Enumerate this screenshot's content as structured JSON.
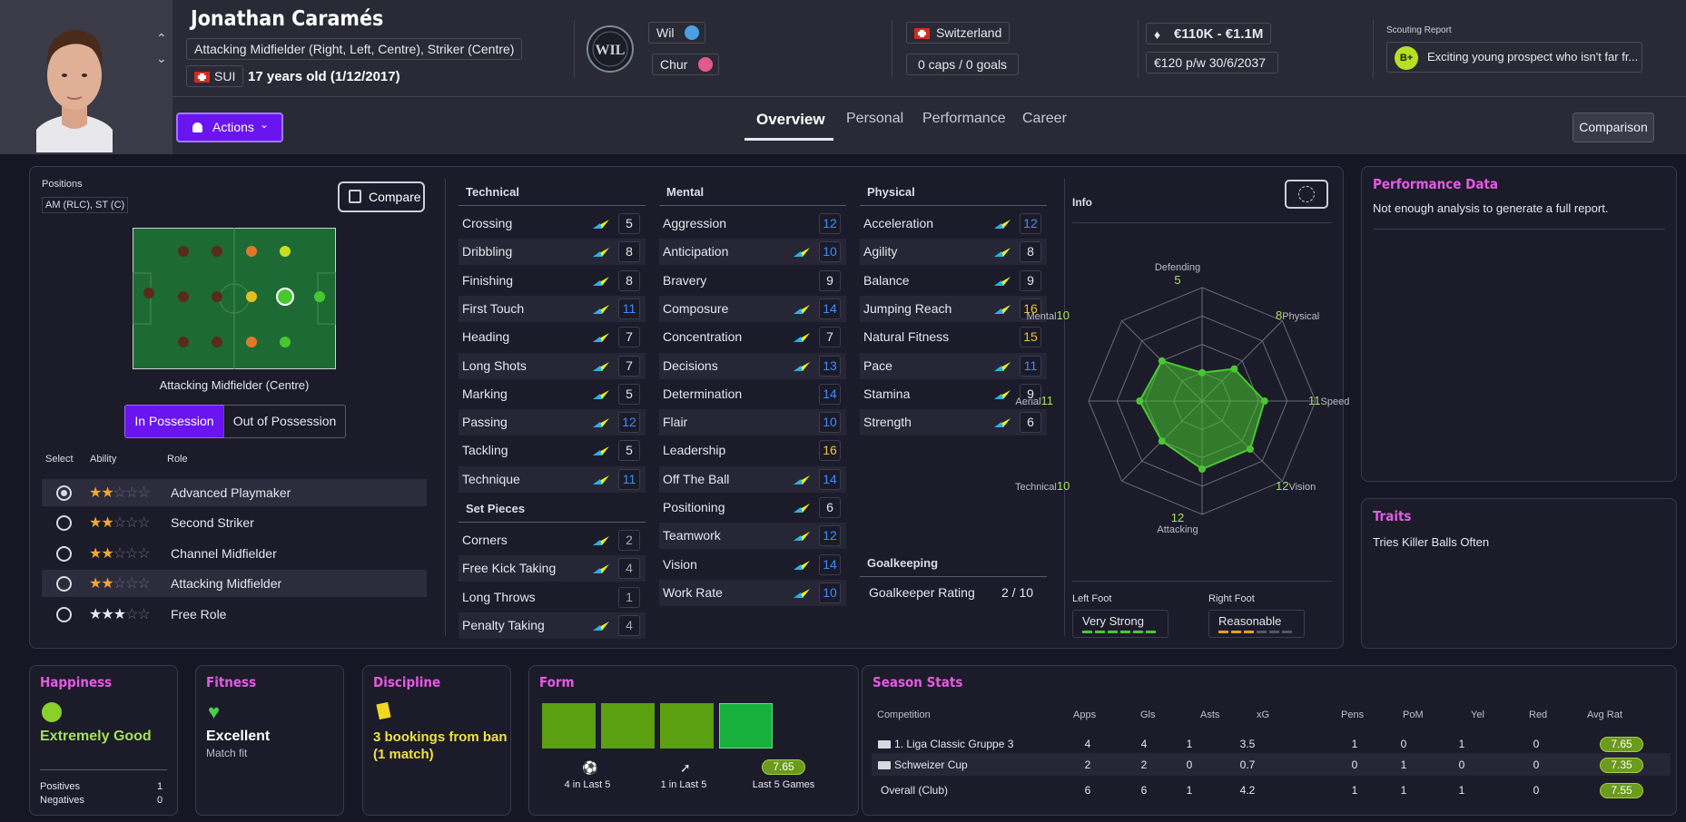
{
  "player": {
    "name": "Jonathan Caramés",
    "positions_full": "Attacking Midfielder (Right, Left, Centre), Striker (Centre)",
    "nationality": "SUI",
    "age": "17 years old (1/12/2017)"
  },
  "club": {
    "name": "Wil",
    "loan": "Chur"
  },
  "international": {
    "country": "Switzerland",
    "caps": "0 caps / 0 goals"
  },
  "contract": {
    "value": "€110K - €1.1M",
    "wage": "€120 p/w",
    "expiry": "30/6/2037"
  },
  "scouting": {
    "title": "Scouting Report",
    "grade": "B+",
    "text": "Exciting young prospect who isn't far fr..."
  },
  "actions_label": "Actions",
  "tabs": [
    "Overview",
    "Personal",
    "Performance",
    "Career"
  ],
  "comparison_label": "Comparison",
  "positions": {
    "title": "Positions",
    "short": "AM (RLC), ST (C)",
    "compare_label": "Compare",
    "selected_position": "Attacking Midfielder (Centre)",
    "in_possession": "In Possession",
    "out_possession": "Out of Possession",
    "col_select": "Select",
    "col_ability": "Ability",
    "col_role": "Role",
    "roles": [
      {
        "name": "Advanced Playmaker",
        "stars": 2
      },
      {
        "name": "Second Striker",
        "stars": 2
      },
      {
        "name": "Channel Midfielder",
        "stars": 2
      },
      {
        "name": "Attacking Midfielder",
        "stars": 2
      },
      {
        "name": "Free Role",
        "stars": 3
      }
    ]
  },
  "technical": {
    "title": "Technical",
    "attrs": [
      {
        "n": "Crossing",
        "v": "5"
      },
      {
        "n": "Dribbling",
        "v": "8"
      },
      {
        "n": "Finishing",
        "v": "8"
      },
      {
        "n": "First Touch",
        "v": "11"
      },
      {
        "n": "Heading",
        "v": "7"
      },
      {
        "n": "Long Shots",
        "v": "7"
      },
      {
        "n": "Marking",
        "v": "5"
      },
      {
        "n": "Passing",
        "v": "12"
      },
      {
        "n": "Tackling",
        "v": "5"
      },
      {
        "n": "Technique",
        "v": "11"
      }
    ]
  },
  "set_pieces": {
    "title": "Set Pieces",
    "attrs": [
      {
        "n": "Corners",
        "v": "2"
      },
      {
        "n": "Free Kick Taking",
        "v": "4"
      },
      {
        "n": "Long Throws",
        "v": "1"
      },
      {
        "n": "Penalty Taking",
        "v": "4"
      }
    ]
  },
  "mental": {
    "title": "Mental",
    "attrs": [
      {
        "n": "Aggression",
        "v": "12"
      },
      {
        "n": "Anticipation",
        "v": "10"
      },
      {
        "n": "Bravery",
        "v": "9"
      },
      {
        "n": "Composure",
        "v": "14"
      },
      {
        "n": "Concentration",
        "v": "7"
      },
      {
        "n": "Decisions",
        "v": "13"
      },
      {
        "n": "Determination",
        "v": "14"
      },
      {
        "n": "Flair",
        "v": "10"
      },
      {
        "n": "Leadership",
        "v": "16"
      },
      {
        "n": "Off The Ball",
        "v": "14"
      },
      {
        "n": "Positioning",
        "v": "6"
      },
      {
        "n": "Teamwork",
        "v": "12"
      },
      {
        "n": "Vision",
        "v": "14"
      },
      {
        "n": "Work Rate",
        "v": "10"
      }
    ]
  },
  "physical": {
    "title": "Physical",
    "attrs": [
      {
        "n": "Acceleration",
        "v": "12"
      },
      {
        "n": "Agility",
        "v": "8"
      },
      {
        "n": "Balance",
        "v": "9"
      },
      {
        "n": "Jumping Reach",
        "v": "16"
      },
      {
        "n": "Natural Fitness",
        "v": "15"
      },
      {
        "n": "Pace",
        "v": "11"
      },
      {
        "n": "Stamina",
        "v": "9"
      },
      {
        "n": "Strength",
        "v": "6"
      }
    ]
  },
  "goalkeeping": {
    "title": "Goalkeeping",
    "label": "Goalkeeper Rating",
    "value": "2 / 10"
  },
  "info": {
    "title": "Info",
    "radar": [
      {
        "label": "Defending",
        "value": "5"
      },
      {
        "label": "Physical",
        "value": "8"
      },
      {
        "label": "Speed",
        "value": "11"
      },
      {
        "label": "Vision",
        "value": "12"
      },
      {
        "label": "Attacking",
        "value": "12"
      },
      {
        "label": "Technical",
        "value": "10"
      },
      {
        "label": "Aerial",
        "value": "11"
      },
      {
        "label": "Mental",
        "value": "10"
      }
    ],
    "left_foot_label": "Left Foot",
    "left_foot": "Very Strong",
    "right_foot_label": "Right Foot",
    "right_foot": "Reasonable"
  },
  "performance": {
    "title": "Performance Data",
    "text": "Not enough analysis to generate a full report."
  },
  "traits": {
    "title": "Traits",
    "text": "Tries Killer Balls Often"
  },
  "happiness": {
    "title": "Happiness",
    "status": "Extremely Good",
    "positives_label": "Positives",
    "positives": "1",
    "negatives_label": "Negatives",
    "negatives": "0"
  },
  "fitness": {
    "title": "Fitness",
    "status": "Excellent",
    "sub": "Match fit"
  },
  "discipline": {
    "title": "Discipline",
    "status": "3 bookings from ban (1 match)"
  },
  "form": {
    "title": "Form",
    "goals": "4 in Last 5",
    "assists": "1 in Last 5",
    "rating": "7.65",
    "rating_label": "Last 5 Games"
  },
  "season": {
    "title": "Season Stats",
    "headers": [
      "Competition",
      "Apps",
      "Gls",
      "Asts",
      "xG",
      "Pens",
      "PoM",
      "Yel",
      "Red",
      "Avg Rat"
    ],
    "rows": [
      {
        "comp": "1. Liga Classic Gruppe 3",
        "apps": "4",
        "gls": "4",
        "asts": "1",
        "xg": "3.5",
        "pens": "1",
        "pom": "0",
        "yel": "1",
        "red": "0",
        "rat": "7.65"
      },
      {
        "comp": "Schweizer Cup",
        "apps": "2",
        "gls": "2",
        "asts": "0",
        "xg": "0.7",
        "pens": "0",
        "pom": "1",
        "yel": "0",
        "red": "0",
        "rat": "7.35"
      },
      {
        "comp": "Overall (Club)",
        "apps": "6",
        "gls": "6",
        "asts": "1",
        "xg": "4.2",
        "pens": "1",
        "pom": "1",
        "yel": "1",
        "red": "0",
        "rat": "7.55"
      }
    ]
  },
  "colors": {
    "accent": "#6a14f0",
    "highlight": "#e35be0",
    "good": "#a6e05a"
  }
}
